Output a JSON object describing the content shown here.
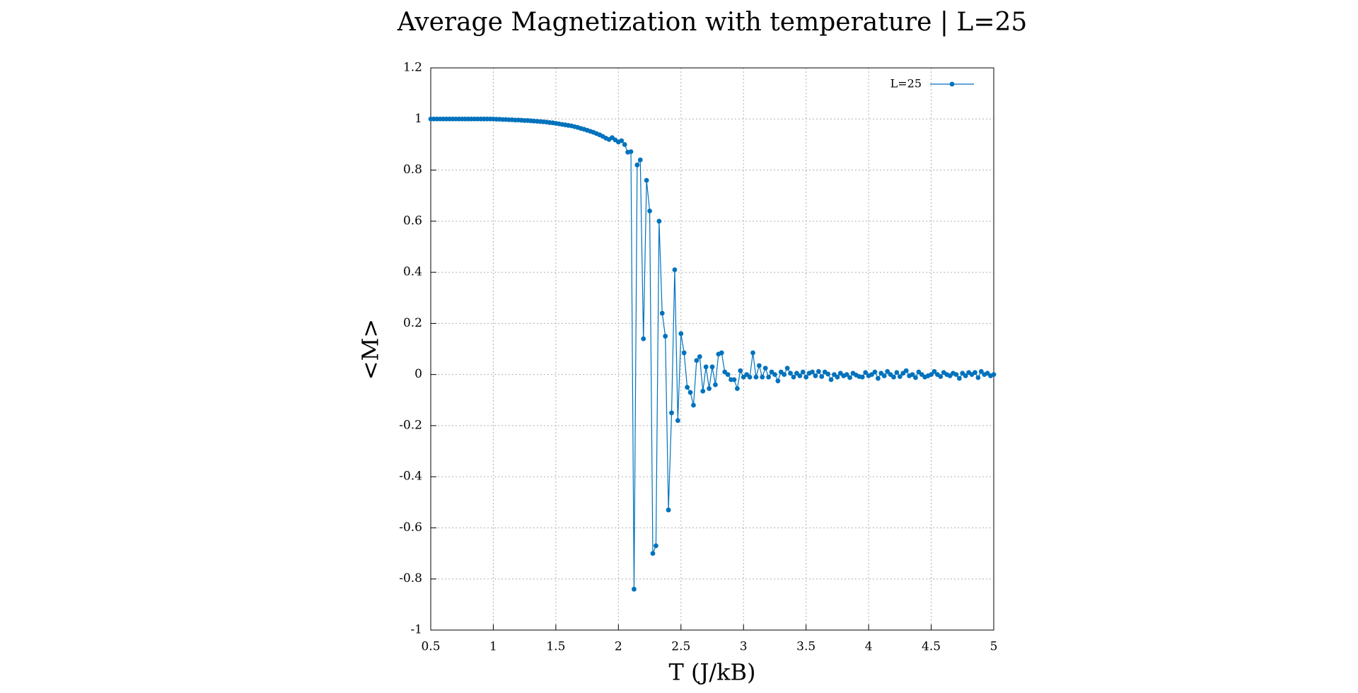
{
  "chart_data": {
    "type": "line",
    "title": "Average Magnetization with temperature | L=25",
    "x_label": "T (J/kB)",
    "y_label": "<M>",
    "x": [
      0.5,
      0.525,
      0.55,
      0.575,
      0.6,
      0.625,
      0.65,
      0.675,
      0.7,
      0.725,
      0.75,
      0.775,
      0.8,
      0.825,
      0.85,
      0.875,
      0.9,
      0.925,
      0.95,
      0.975,
      1.0,
      1.025,
      1.05,
      1.075,
      1.1,
      1.125,
      1.15,
      1.175,
      1.2,
      1.225,
      1.25,
      1.275,
      1.3,
      1.325,
      1.35,
      1.375,
      1.4,
      1.425,
      1.45,
      1.475,
      1.5,
      1.525,
      1.55,
      1.575,
      1.6,
      1.625,
      1.65,
      1.675,
      1.7,
      1.725,
      1.75,
      1.775,
      1.8,
      1.825,
      1.85,
      1.875,
      1.9,
      1.925,
      1.95,
      1.975,
      2.0,
      2.025,
      2.05,
      2.075,
      2.1,
      2.125,
      2.15,
      2.175,
      2.2,
      2.225,
      2.25,
      2.275,
      2.3,
      2.325,
      2.35,
      2.375,
      2.4,
      2.425,
      2.45,
      2.475,
      2.5,
      2.525,
      2.55,
      2.575,
      2.6,
      2.625,
      2.65,
      2.675,
      2.7,
      2.725,
      2.75,
      2.775,
      2.8,
      2.825,
      2.85,
      2.875,
      2.9,
      2.925,
      2.95,
      2.975,
      3.0,
      3.025,
      3.05,
      3.075,
      3.1,
      3.125,
      3.15,
      3.175,
      3.2,
      3.225,
      3.25,
      3.275,
      3.3,
      3.325,
      3.35,
      3.375,
      3.4,
      3.425,
      3.45,
      3.475,
      3.5,
      3.525,
      3.55,
      3.575,
      3.6,
      3.625,
      3.65,
      3.675,
      3.7,
      3.725,
      3.75,
      3.775,
      3.8,
      3.825,
      3.85,
      3.875,
      3.9,
      3.925,
      3.95,
      3.975,
      4.0,
      4.025,
      4.05,
      4.075,
      4.1,
      4.125,
      4.15,
      4.175,
      4.2,
      4.225,
      4.25,
      4.275,
      4.3,
      4.325,
      4.35,
      4.375,
      4.4,
      4.425,
      4.45,
      4.475,
      4.5,
      4.525,
      4.55,
      4.575,
      4.6,
      4.625,
      4.65,
      4.675,
      4.7,
      4.725,
      4.75,
      4.775,
      4.8,
      4.825,
      4.85,
      4.875,
      4.9,
      4.925,
      4.95,
      4.975,
      5.0
    ],
    "series": [
      {
        "name": "L=25",
        "color": "#0072bd",
        "values": [
          1.0,
          1.0,
          1.0,
          1.0,
          1.0,
          1.0,
          1.0,
          1.0,
          1.0,
          1.0,
          1.0,
          1.0,
          1.0,
          1.0,
          1.0,
          1.0,
          1.0,
          1.0,
          1.0,
          1.0,
          1.0,
          0.999,
          0.999,
          0.998,
          0.998,
          0.997,
          0.997,
          0.996,
          0.996,
          0.995,
          0.994,
          0.994,
          0.993,
          0.992,
          0.991,
          0.99,
          0.989,
          0.988,
          0.986,
          0.985,
          0.983,
          0.981,
          0.979,
          0.977,
          0.975,
          0.973,
          0.97,
          0.967,
          0.963,
          0.96,
          0.956,
          0.952,
          0.948,
          0.943,
          0.938,
          0.932,
          0.925,
          0.92,
          0.927,
          0.918,
          0.91,
          0.915,
          0.9,
          0.87,
          0.872,
          -0.84,
          0.82,
          0.84,
          0.14,
          0.76,
          0.64,
          -0.7,
          -0.67,
          0.6,
          0.24,
          0.15,
          -0.53,
          -0.15,
          0.41,
          -0.18,
          0.16,
          0.085,
          -0.05,
          -0.07,
          -0.12,
          0.055,
          0.07,
          -0.065,
          0.03,
          -0.055,
          0.03,
          -0.04,
          0.08,
          0.085,
          0.01,
          0,
          -0.02,
          -0.02,
          -0.055,
          0.015,
          -0.01,
          0.0,
          -0.01,
          0.085,
          -0.01,
          0.035,
          -0.01,
          0.025,
          -0.01,
          0.01,
          0.0,
          -0.025,
          0.01,
          0.0,
          0.025,
          0.005,
          -0.01,
          0.005,
          -0.005,
          0.01,
          -0.01,
          0.005,
          0.01,
          -0.005,
          0.012,
          -0.008,
          0.01,
          0.002,
          -0.02,
          0.0,
          -0.01,
          0.005,
          -0.005,
          0.0,
          -0.012,
          0.005,
          -0.002,
          -0.008,
          -0.01,
          0.008,
          -0.005,
          0.0,
          0.01,
          -0.015,
          0.005,
          -0.005,
          0.012,
          0.0,
          -0.01,
          0.008,
          -0.008,
          0.005,
          0.015,
          -0.005,
          0.0,
          -0.012,
          0.01,
          0.0,
          -0.01,
          -0.005,
          0.0,
          0.012,
          0.0,
          -0.008,
          0.008,
          0.0,
          -0.005,
          0.005,
          0.0,
          -0.015,
          0.005,
          -0.005,
          0.008,
          0.0,
          0.008,
          -0.012,
          0.012,
          0.0,
          0.005,
          -0.005,
          0.0
        ]
      }
    ],
    "xlim": [
      0.5,
      5
    ],
    "xticks": [
      0.5,
      1,
      1.5,
      2,
      2.5,
      3,
      3.5,
      4,
      4.5,
      5
    ],
    "ylim": [
      -1,
      1.2
    ],
    "yticks": [
      -1,
      -0.8,
      -0.6,
      -0.4,
      -0.2,
      0,
      0.2,
      0.4,
      0.6,
      0.8,
      1,
      1.2
    ],
    "grid": true,
    "legend": "top-right"
  }
}
